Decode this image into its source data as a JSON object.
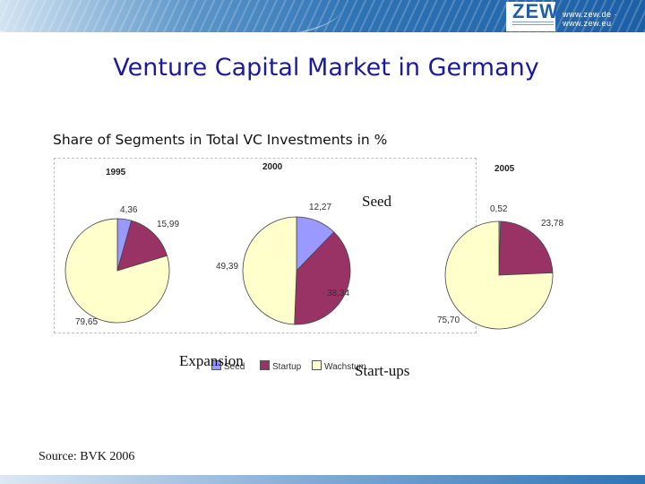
{
  "header": {
    "logo": "ZEW",
    "url": "www.zew.de · www.zew.eu"
  },
  "title": "Venture Capital Market in Germany",
  "subtitle": "Share of Segments in Total VC Investments in %",
  "source": "Source: BVK 2006",
  "annotations": {
    "seed": "Seed",
    "expansion": "Expansion",
    "startups": "Start-ups"
  },
  "colors": {
    "seed": "#9999ff",
    "startup": "#993366",
    "wachstum": "#ffffcc"
  },
  "chart_data": {
    "type": "pie",
    "segments": [
      "Seed",
      "Startup",
      "Wachstum"
    ],
    "charts": [
      {
        "year": "1995",
        "values": [
          4.36,
          15.99,
          79.65
        ],
        "labels": [
          "4,36",
          "15,99",
          "79,65"
        ]
      },
      {
        "year": "2000",
        "values": [
          12.27,
          38.34,
          49.39
        ],
        "labels": [
          "12,27",
          "38,34",
          "49,39"
        ]
      },
      {
        "year": "2005",
        "values": [
          0.52,
          23.78,
          75.7
        ],
        "labels": [
          "0,52",
          "23,78",
          "75,70"
        ]
      }
    ],
    "legend": {
      "placement": "bottom",
      "entries": [
        "Seed",
        "Startup",
        "Wachstum"
      ]
    }
  }
}
